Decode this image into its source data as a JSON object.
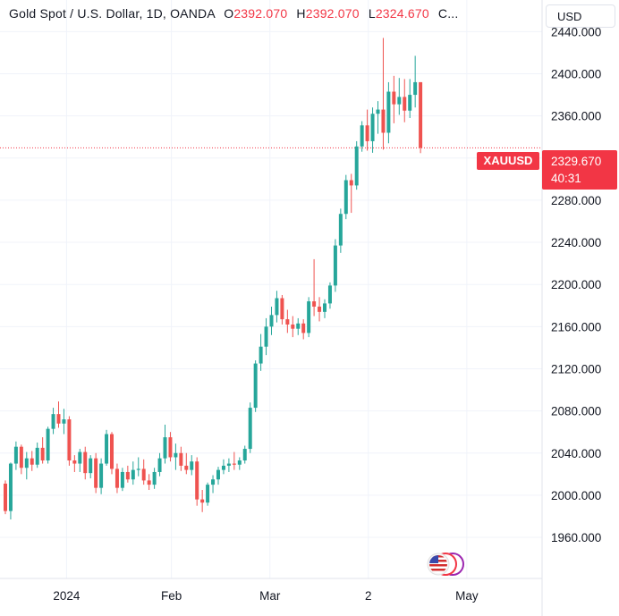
{
  "header": {
    "title": "Gold Spot / U.S. Dollar, 1D, OANDA",
    "open_key": "O",
    "open_value": "2392.070",
    "high_key": "H",
    "high_value": "2392.070",
    "low_key": "L",
    "low_value": "2324.670",
    "close_key": "C..."
  },
  "currency_button": "USD",
  "symbol_tag": "XAUUSD",
  "last_price": "2329.670",
  "countdown": "40:31",
  "colors": {
    "up": "#26a69a",
    "down": "#ef5350",
    "price_tag": "#f23645"
  },
  "icons": {
    "market_badge": "us-flag-icon"
  },
  "chart_data": {
    "type": "candlestick",
    "symbol": "XAUUSD",
    "timeframe": "1D",
    "y_ticks": [
      "1960.000",
      "2000.000",
      "2040.000",
      "2080.000",
      "2120.000",
      "2160.000",
      "2200.000",
      "2240.000",
      "2280.000",
      "2320.000",
      "2360.000",
      "2400.000",
      "2440.000"
    ],
    "x_ticks": [
      "2024",
      "Feb",
      "Mar",
      "2",
      "May"
    ],
    "ylim": [
      1921,
      2470
    ],
    "last_price": 2329.67,
    "ohlc": [
      [
        2011,
        2014,
        1982,
        1985
      ],
      [
        1985,
        2031,
        1977,
        2030
      ],
      [
        2030,
        2051,
        2024,
        2046
      ],
      [
        2046,
        2048,
        2020,
        2026
      ],
      [
        2026,
        2041,
        2015,
        2035
      ],
      [
        2035,
        2042,
        2023,
        2029
      ],
      [
        2029,
        2050,
        2026,
        2045
      ],
      [
        2045,
        2055,
        2030,
        2033
      ],
      [
        2033,
        2065,
        2030,
        2063
      ],
      [
        2063,
        2083,
        2058,
        2077
      ],
      [
        2077,
        2089,
        2064,
        2068
      ],
      [
        2068,
        2082,
        2058,
        2072
      ],
      [
        2072,
        2075,
        2028,
        2033
      ],
      [
        2033,
        2038,
        2022,
        2030
      ],
      [
        2030,
        2044,
        2022,
        2041
      ],
      [
        2041,
        2046,
        2015,
        2021
      ],
      [
        2021,
        2038,
        2016,
        2035
      ],
      [
        2035,
        2040,
        2002,
        2007
      ],
      [
        2007,
        2035,
        2001,
        2030
      ],
      [
        2030,
        2062,
        2028,
        2058
      ],
      [
        2058,
        2060,
        2020,
        2025
      ],
      [
        2025,
        2030,
        2002,
        2007
      ],
      [
        2007,
        2026,
        2004,
        2022
      ],
      [
        2022,
        2028,
        2012,
        2015
      ],
      [
        2015,
        2032,
        2010,
        2024
      ],
      [
        2024,
        2036,
        2018,
        2025
      ],
      [
        2025,
        2034,
        2010,
        2014
      ],
      [
        2014,
        2020,
        2005,
        2010
      ],
      [
        2010,
        2026,
        2006,
        2022
      ],
      [
        2022,
        2040,
        2018,
        2035
      ],
      [
        2035,
        2067,
        2030,
        2055
      ],
      [
        2055,
        2060,
        2032,
        2036
      ],
      [
        2036,
        2049,
        2024,
        2040
      ],
      [
        2040,
        2046,
        2023,
        2028
      ],
      [
        2028,
        2040,
        2020,
        2024
      ],
      [
        2024,
        2038,
        2019,
        2032
      ],
      [
        2032,
        2036,
        1990,
        1996
      ],
      [
        1996,
        2005,
        1984,
        1993
      ],
      [
        1993,
        2012,
        1990,
        2010
      ],
      [
        2010,
        2019,
        2002,
        2015
      ],
      [
        2015,
        2027,
        2010,
        2024
      ],
      [
        2024,
        2034,
        2020,
        2028
      ],
      [
        2028,
        2035,
        2022,
        2030
      ],
      [
        2030,
        2041,
        2024,
        2029
      ],
      [
        2029,
        2036,
        2024,
        2033
      ],
      [
        2033,
        2047,
        2030,
        2044
      ],
      [
        2044,
        2088,
        2040,
        2083
      ],
      [
        2083,
        2128,
        2079,
        2125
      ],
      [
        2125,
        2153,
        2118,
        2141
      ],
      [
        2141,
        2168,
        2133,
        2160
      ],
      [
        2160,
        2179,
        2152,
        2171
      ],
      [
        2171,
        2194,
        2164,
        2187
      ],
      [
        2187,
        2190,
        2162,
        2167
      ],
      [
        2167,
        2176,
        2154,
        2162
      ],
      [
        2162,
        2170,
        2150,
        2158
      ],
      [
        2158,
        2168,
        2152,
        2163
      ],
      [
        2163,
        2167,
        2148,
        2154
      ],
      [
        2154,
        2188,
        2150,
        2184
      ],
      [
        2184,
        2224,
        2170,
        2179
      ],
      [
        2179,
        2188,
        2165,
        2174
      ],
      [
        2174,
        2186,
        2168,
        2182
      ],
      [
        2182,
        2202,
        2177,
        2199
      ],
      [
        2199,
        2243,
        2193,
        2237
      ],
      [
        2237,
        2272,
        2230,
        2267
      ],
      [
        2267,
        2304,
        2262,
        2299
      ],
      [
        2299,
        2305,
        2268,
        2294
      ],
      [
        2294,
        2336,
        2290,
        2331
      ],
      [
        2331,
        2355,
        2326,
        2351
      ],
      [
        2351,
        2366,
        2327,
        2336
      ],
      [
        2336,
        2368,
        2325,
        2362
      ],
      [
        2362,
        2374,
        2343,
        2366
      ],
      [
        2366,
        2434,
        2328,
        2344
      ],
      [
        2344,
        2392,
        2334,
        2383
      ],
      [
        2383,
        2398,
        2353,
        2371
      ],
      [
        2371,
        2396,
        2361,
        2378
      ],
      [
        2378,
        2395,
        2354,
        2365
      ],
      [
        2365,
        2395,
        2358,
        2380
      ],
      [
        2380,
        2417,
        2368,
        2392
      ],
      [
        2392,
        2392,
        2324.67,
        2329.67
      ]
    ]
  }
}
